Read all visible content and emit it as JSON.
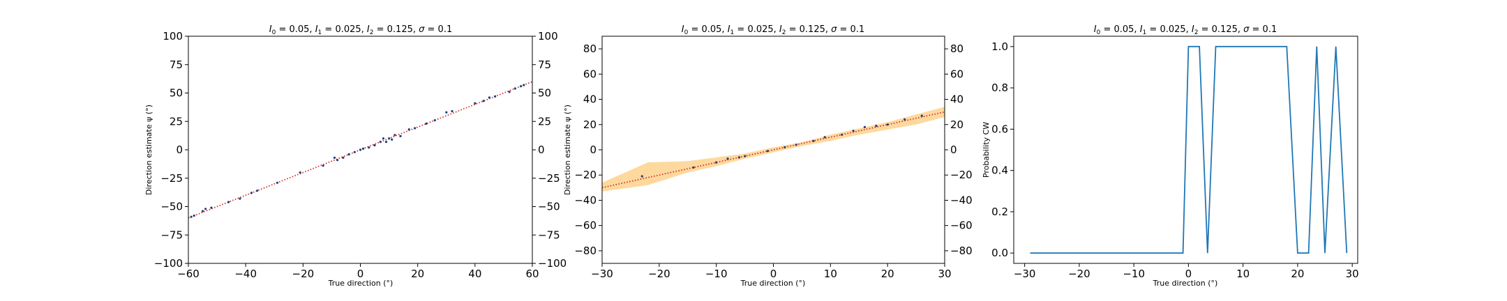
{
  "chart_data": [
    {
      "type": "scatter",
      "title": "I_0 = 0.05, I_1 = 0.025, I_2 = 0.125, σ = 0.1",
      "title_parts": {
        "I0": "I",
        "s0": "0",
        "v0": " = 0.05, ",
        "I1": "I",
        "s1": "1",
        "v1": " = 0.025, ",
        "I2": "I",
        "s2": "2",
        "v2": " = 0.125, ",
        "sig": "σ",
        "v3": " = 0.1"
      },
      "xlabel": "True direction (°)",
      "ylabel": "Direction estimate ψ (°)",
      "xlim": [
        -60,
        60
      ],
      "ylim": [
        -100,
        100
      ],
      "xticks": [
        "−60",
        "−40",
        "−20",
        "0",
        "20",
        "40",
        "60"
      ],
      "yticks": [
        "−100",
        "−75",
        "−50",
        "−25",
        "0",
        "25",
        "50",
        "75",
        "100"
      ],
      "right_yticks": [
        "−100",
        "−75",
        "−50",
        "−25",
        "0",
        "25",
        "50",
        "75",
        "100"
      ],
      "identity_line": {
        "color": "#d62728",
        "style": "dotted",
        "x": [
          -60,
          60
        ],
        "y": [
          -60,
          60
        ]
      },
      "points": {
        "color": "#1f3f7a",
        "x": [
          -59,
          -58,
          -55,
          -54,
          -52,
          -46,
          -42,
          -38,
          -36,
          -29,
          -21,
          -13,
          -9,
          -8,
          -6,
          -4,
          -2,
          0,
          1,
          3,
          5,
          7,
          8,
          9,
          10,
          11,
          12,
          14,
          17,
          19,
          23,
          26,
          30,
          32,
          40,
          43,
          45,
          47,
          52,
          54,
          56,
          57
        ],
        "y": [
          -59,
          -58,
          -54,
          -52,
          -51,
          -46,
          -43,
          -38,
          -36,
          -29,
          -20,
          -14,
          -7,
          -9,
          -7,
          -4,
          -2,
          0,
          1,
          2,
          4,
          7,
          10,
          7,
          10,
          9,
          13,
          12,
          18,
          19,
          23,
          26,
          33,
          34,
          41,
          43,
          46,
          47,
          51,
          54,
          56,
          57
        ]
      }
    },
    {
      "type": "line",
      "title": "I_0 = 0.05, I_1 = 0.025, I_2 = 0.125, σ = 0.1",
      "title_parts": {
        "I0": "I",
        "s0": "0",
        "v0": " = 0.05, ",
        "I1": "I",
        "s1": "1",
        "v1": " = 0.025, ",
        "I2": "I",
        "s2": "2",
        "v2": " = 0.125, ",
        "sig": "σ",
        "v3": " = 0.1"
      },
      "xlabel": "True direction (°)",
      "ylabel": "Direction estimate ψ (°)",
      "xlim": [
        -30,
        30
      ],
      "ylim": [
        -90,
        90
      ],
      "xticks": [
        "−30",
        "−20",
        "−10",
        "0",
        "10",
        "20",
        "30"
      ],
      "yticks": [
        "−80",
        "−60",
        "−40",
        "−20",
        "0",
        "20",
        "40",
        "60",
        "80"
      ],
      "right_yticks": [
        "−80",
        "−60",
        "−40",
        "−20",
        "0",
        "20",
        "40",
        "60",
        "80"
      ],
      "identity_line": {
        "color": "#d62728",
        "style": "dotted",
        "x": [
          -30,
          30
        ],
        "y": [
          -30,
          30
        ]
      },
      "band": {
        "color": "#fdb94d",
        "x": [
          -30,
          -22,
          -15,
          -10,
          -5,
          0,
          5,
          10,
          15,
          20,
          25,
          30
        ],
        "upper": [
          -26,
          -10,
          -9,
          -6,
          -3,
          2,
          6,
          12,
          17,
          22,
          28,
          34
        ],
        "lower": [
          -33,
          -28,
          -18,
          -13,
          -7,
          -2,
          3,
          7,
          12,
          16,
          20,
          26
        ]
      },
      "points": {
        "color": "#1f3f7a",
        "x": [
          -23,
          -14,
          -10,
          -8,
          -6,
          -5,
          -1,
          2,
          4,
          7,
          9,
          12,
          14,
          16,
          18,
          20,
          23,
          26
        ],
        "y": [
          -21,
          -14,
          -10,
          -7,
          -6,
          -5,
          -1,
          2,
          4,
          7,
          10,
          12,
          15,
          18,
          19,
          20,
          24,
          27
        ]
      }
    },
    {
      "type": "line",
      "title": "I_0 = 0.05, I_1 = 0.025, I_2 = 0.125, σ = 0.1",
      "title_parts": {
        "I0": "I",
        "s0": "0",
        "v0": " = 0.05, ",
        "I1": "I",
        "s1": "1",
        "v1": " = 0.025, ",
        "I2": "I",
        "s2": "2",
        "v2": " = 0.125, ",
        "sig": "σ",
        "v3": " = 0.1"
      },
      "xlabel": "True direction (°)",
      "ylabel": "Probability CW",
      "xlim": [
        -32,
        31
      ],
      "ylim": [
        -0.05,
        1.05
      ],
      "xticks": [
        "−30",
        "−20",
        "−10",
        "0",
        "10",
        "20",
        "30"
      ],
      "yticks": [
        "0.0",
        "0.2",
        "0.4",
        "0.6",
        "0.8",
        "1.0"
      ],
      "series": [
        {
          "color": "#1f77b4",
          "x": [
            -29,
            -1,
            0,
            2,
            3.5,
            5,
            18,
            20,
            22,
            23.5,
            25,
            27,
            29
          ],
          "y": [
            0,
            0,
            1,
            1,
            0,
            1,
            1,
            0,
            0,
            1,
            0,
            1,
            0
          ]
        }
      ]
    }
  ]
}
